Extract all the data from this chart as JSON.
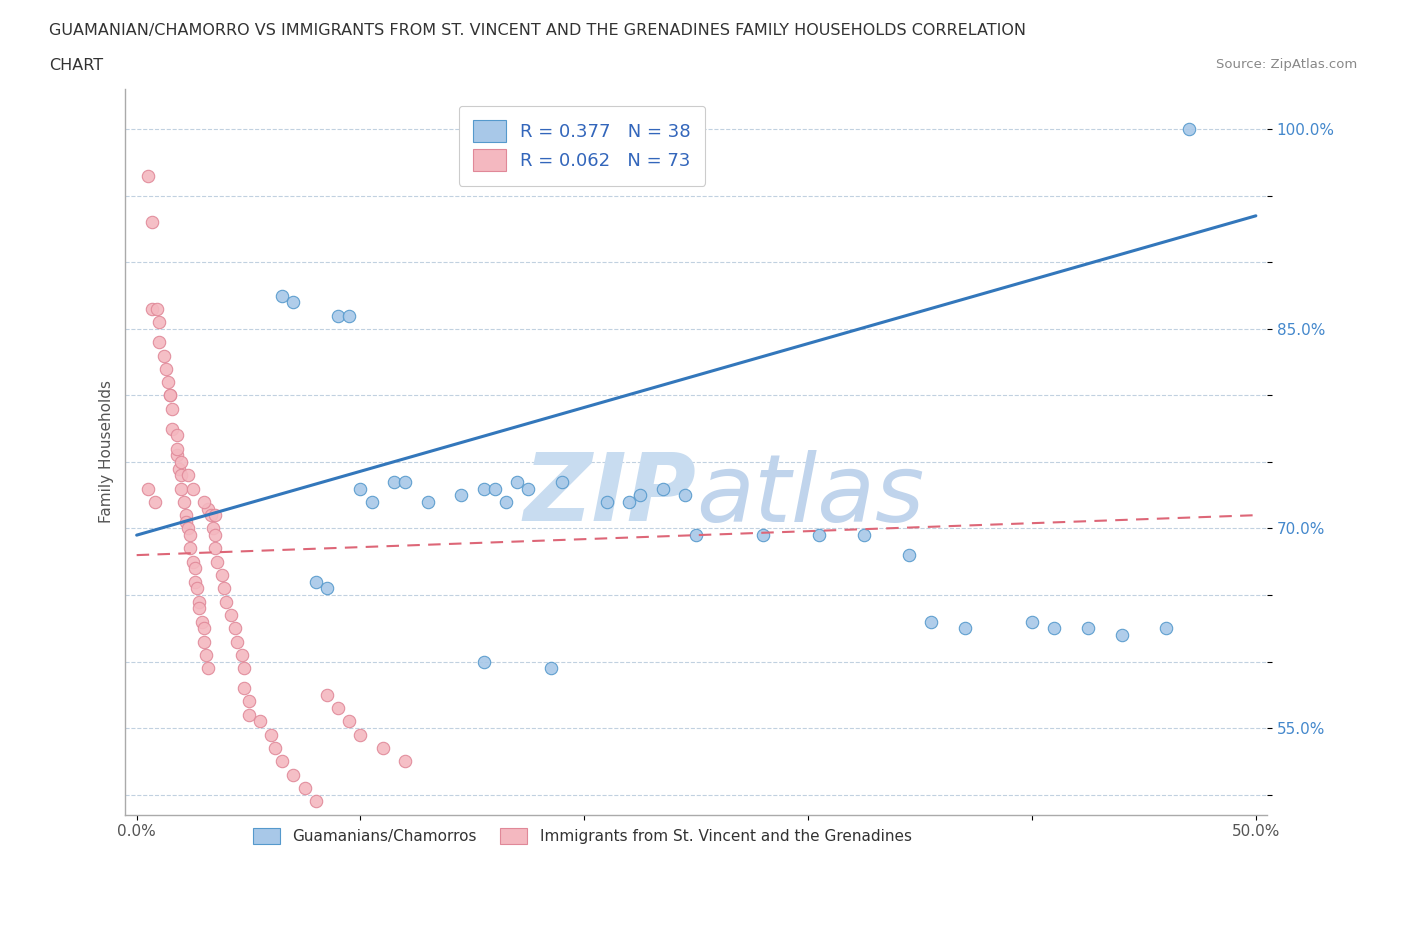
{
  "title_line1": "GUAMANIAN/CHAMORRO VS IMMIGRANTS FROM ST. VINCENT AND THE GRENADINES FAMILY HOUSEHOLDS CORRELATION",
  "title_line2": "CHART",
  "source_text": "Source: ZipAtlas.com",
  "ylabel": "Family Households",
  "xlim_min": -0.005,
  "xlim_max": 0.505,
  "ylim_min": 0.485,
  "ylim_max": 1.03,
  "r_blue": 0.377,
  "n_blue": 38,
  "r_pink": 0.062,
  "n_pink": 73,
  "blue_color": "#a8c8e8",
  "blue_edge_color": "#5599cc",
  "pink_color": "#f4b8c0",
  "pink_edge_color": "#e08898",
  "trend_blue_color": "#3377bb",
  "trend_pink_color": "#dd6677",
  "watermark_color": "#ddeeff",
  "legend_label_blue": "Guamanians/Chamorros",
  "legend_label_pink": "Immigrants from St. Vincent and the Grenadines",
  "blue_x": [
    0.065,
    0.07,
    0.09,
    0.095,
    0.1,
    0.105,
    0.115,
    0.12,
    0.13,
    0.145,
    0.155,
    0.16,
    0.165,
    0.17,
    0.175,
    0.19,
    0.21,
    0.22,
    0.225,
    0.235,
    0.245,
    0.25,
    0.28,
    0.305,
    0.325,
    0.345,
    0.355,
    0.37,
    0.4,
    0.41,
    0.425,
    0.44,
    0.46,
    0.47,
    0.08,
    0.085,
    0.155,
    0.185
  ],
  "blue_y": [
    0.875,
    0.87,
    0.86,
    0.86,
    0.73,
    0.72,
    0.735,
    0.735,
    0.72,
    0.725,
    0.73,
    0.73,
    0.72,
    0.735,
    0.73,
    0.735,
    0.72,
    0.72,
    0.725,
    0.73,
    0.725,
    0.695,
    0.695,
    0.695,
    0.695,
    0.68,
    0.63,
    0.625,
    0.63,
    0.625,
    0.625,
    0.62,
    0.625,
    1.0,
    0.66,
    0.655,
    0.6,
    0.595
  ],
  "pink_x": [
    0.005,
    0.007,
    0.007,
    0.009,
    0.01,
    0.01,
    0.012,
    0.013,
    0.014,
    0.015,
    0.016,
    0.016,
    0.018,
    0.018,
    0.019,
    0.02,
    0.02,
    0.021,
    0.022,
    0.022,
    0.023,
    0.024,
    0.024,
    0.025,
    0.026,
    0.026,
    0.027,
    0.028,
    0.028,
    0.029,
    0.03,
    0.03,
    0.031,
    0.032,
    0.032,
    0.033,
    0.034,
    0.035,
    0.035,
    0.036,
    0.038,
    0.039,
    0.04,
    0.042,
    0.044,
    0.045,
    0.047,
    0.048,
    0.048,
    0.05,
    0.05,
    0.055,
    0.06,
    0.062,
    0.065,
    0.07,
    0.075,
    0.08,
    0.085,
    0.09,
    0.095,
    0.1,
    0.11,
    0.12,
    0.005,
    0.008,
    0.015,
    0.018,
    0.02,
    0.023,
    0.025,
    0.03,
    0.035
  ],
  "pink_y": [
    0.965,
    0.93,
    0.865,
    0.865,
    0.855,
    0.84,
    0.83,
    0.82,
    0.81,
    0.8,
    0.79,
    0.775,
    0.77,
    0.755,
    0.745,
    0.74,
    0.73,
    0.72,
    0.71,
    0.705,
    0.7,
    0.695,
    0.685,
    0.675,
    0.67,
    0.66,
    0.655,
    0.645,
    0.64,
    0.63,
    0.625,
    0.615,
    0.605,
    0.595,
    0.715,
    0.71,
    0.7,
    0.695,
    0.685,
    0.675,
    0.665,
    0.655,
    0.645,
    0.635,
    0.625,
    0.615,
    0.605,
    0.595,
    0.58,
    0.57,
    0.56,
    0.555,
    0.545,
    0.535,
    0.525,
    0.515,
    0.505,
    0.495,
    0.575,
    0.565,
    0.555,
    0.545,
    0.535,
    0.525,
    0.73,
    0.72,
    0.8,
    0.76,
    0.75,
    0.74,
    0.73,
    0.72,
    0.71
  ],
  "trend_blue_x0": 0.0,
  "trend_blue_y0": 0.695,
  "trend_blue_x1": 0.5,
  "trend_blue_y1": 0.935,
  "trend_pink_x0": 0.0,
  "trend_pink_y0": 0.68,
  "trend_pink_x1": 0.5,
  "trend_pink_y1": 0.71
}
